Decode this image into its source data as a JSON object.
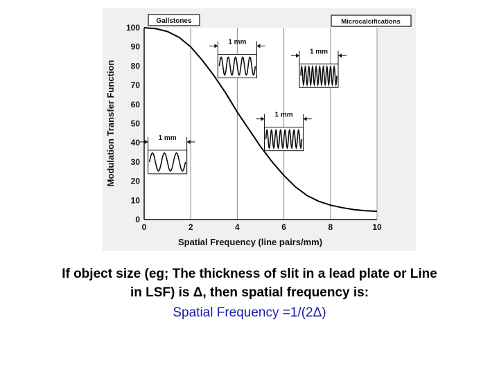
{
  "chart_data": {
    "type": "line",
    "title": "",
    "xlabel": "Spatial Frequency (line pairs/mm)",
    "ylabel": "Modulation Transfer Function",
    "xlim": [
      0,
      10
    ],
    "ylim": [
      0,
      100
    ],
    "x_ticks": [
      "0",
      "2",
      "4",
      "6",
      "8",
      "10"
    ],
    "y_ticks": [
      "0",
      "10",
      "20",
      "30",
      "40",
      "50",
      "60",
      "70",
      "80",
      "90",
      "100"
    ],
    "grid": "vertical lines at x = 2, 4, 6, 8",
    "series": [
      {
        "x": [
          0,
          0.5,
          1,
          1.5,
          2,
          2.5,
          3,
          3.5,
          4,
          4.5,
          5,
          5.5,
          6,
          6.5,
          7,
          7.5,
          8,
          8.5,
          9,
          9.5,
          10
        ],
        "values": [
          100,
          99.5,
          98,
          95,
          90,
          83,
          75,
          66,
          56,
          47,
          38,
          30,
          23,
          17,
          12.5,
          9.5,
          7.5,
          6.2,
          5.2,
          4.6,
          4.3
        ]
      }
    ],
    "annotations": {
      "gallstones": "Gallstones",
      "microcalcifications": "Microcalcifications",
      "insets": [
        {
          "label": "1 mm",
          "x": 1,
          "y": 30,
          "cycles": 3
        },
        {
          "label": "1 mm",
          "x": 4,
          "y": 80,
          "cycles": 5
        },
        {
          "label": "1 mm",
          "x": 6,
          "y": 42,
          "cycles": 8
        },
        {
          "label": "1 mm",
          "x": 7.5,
          "y": 75,
          "cycles": 10
        }
      ]
    }
  },
  "caption": {
    "line1": "If object size (eg; The thickness of slit in a lead plate or Line",
    "line2": "in LSF) is  Δ, then spatial frequency is:",
    "formula": "Spatial Frequency =1/(2Δ)"
  }
}
